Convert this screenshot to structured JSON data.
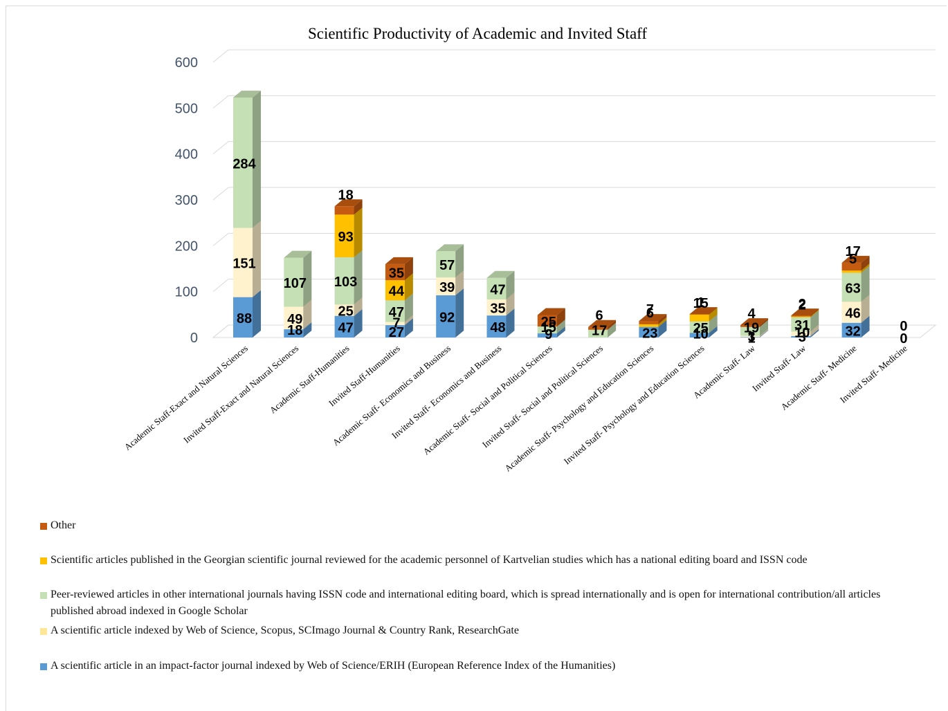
{
  "chart_data": {
    "type": "bar",
    "stacked": true,
    "style_3d": true,
    "title": "Scientific Productivity of Academic and Invited Staff",
    "ylim": [
      0,
      600
    ],
    "yticks": [
      "0",
      "100",
      "200",
      "300",
      "400",
      "500",
      "600"
    ],
    "grid": true,
    "legend_position": "bottom",
    "categories": [
      "Academic Staff-Exact and Natural Sciences",
      "Invited Staff-Exact and Natural Sciences",
      "Academic Staff-Humanities",
      "Invited Staff-Humanities",
      "Academic Staff- Economics and Business",
      "Invited Staff- Economics and Business",
      "Academic Staff- Social and Political Sciences",
      "Invited Staff- Social and Political Sciences",
      "Academic Staff- Psychology and Education Sciences",
      "Invited Staff- Psychology and Education Sciences",
      "Academic Staff- Law",
      "Invited Staff- Law",
      "Academic Staff- Medicine",
      "Invited Staff- Medicine"
    ],
    "series": [
      {
        "name": "A scientific article in an impact-factor journal indexed by Web of  Science/ERIH  (European Reference Index of the Humanities)",
        "color": "#5b9bd5",
        "values": [
          88,
          18,
          47,
          27,
          92,
          48,
          9,
          0,
          23,
          10,
          1,
          3,
          32,
          0
        ]
      },
      {
        "name": "A scientific article indexed by Web of Science, Scopus, SCImago Journal & Country Rank, ResearchGate",
        "color": "#fff2cc",
        "values": [
          151,
          49,
          25,
          7,
          39,
          35,
          0,
          0,
          0,
          0,
          3,
          10,
          46,
          0
        ]
      },
      {
        "name": "Peer-reviewed articles in other international journals having ISSN code and international editing board, which is spread internationally and is open for international contribution/all articles published abroad indexed in Google Scholar",
        "color": "#c5e0b4",
        "values": [
          284,
          107,
          103,
          47,
          57,
          47,
          15,
          17,
          0,
          25,
          19,
          31,
          63,
          0
        ]
      },
      {
        "name": "Scientific articles published in the Georgian scientific journal  reviewed for the academic personnel of Kartvelian studies which has a national editing board and ISSN code",
        "color": "#ffc000",
        "values": [
          0,
          0,
          93,
          44,
          0,
          0,
          0,
          0,
          6,
          15,
          0,
          2,
          5,
          0
        ]
      },
      {
        "name": "Other",
        "color": "#c55a11",
        "values": [
          0,
          0,
          18,
          35,
          0,
          0,
          25,
          6,
          7,
          1,
          4,
          2,
          17,
          0
        ]
      }
    ],
    "data_labels": [
      [
        "88",
        "151",
        "284",
        "",
        ""
      ],
      [
        "18",
        "49",
        "107",
        "",
        ""
      ],
      [
        "47",
        "25",
        "103",
        "93",
        "18"
      ],
      [
        "27",
        "7",
        "47",
        "44",
        "35"
      ],
      [
        "92",
        "39",
        "57",
        "",
        ""
      ],
      [
        "48",
        "35",
        "47",
        "",
        ""
      ],
      [
        "9",
        "",
        "15",
        "",
        "25"
      ],
      [
        "",
        "",
        "17",
        "",
        "6"
      ],
      [
        "23",
        "",
        "",
        "6",
        "7"
      ],
      [
        "10",
        "",
        "25",
        "15",
        "1"
      ],
      [
        "1",
        "3",
        "19",
        "",
        "4"
      ],
      [
        "3",
        "10",
        "31",
        "2",
        "2"
      ],
      [
        "32",
        "46",
        "63",
        "5",
        "17"
      ],
      [
        "0",
        "",
        "",
        "",
        "0"
      ]
    ],
    "legend_order": [
      "Other",
      "Scientific articles published in the Georgian scientific journal  reviewed for the academic personnel of Kartvelian studies which has a national editing board and ISSN code",
      "Peer-reviewed articles in other international journals having ISSN code and international editing board, which is spread internationally and is open for international contribution/all articles published abroad indexed in Google Scholar",
      "A scientific article indexed by Web of Science, Scopus, SCImago Journal & Country Rank, ResearchGate",
      "A scientific article in an impact-factor journal indexed by Web of  Science/ERIH  (European Reference Index of the Humanities)"
    ]
  }
}
